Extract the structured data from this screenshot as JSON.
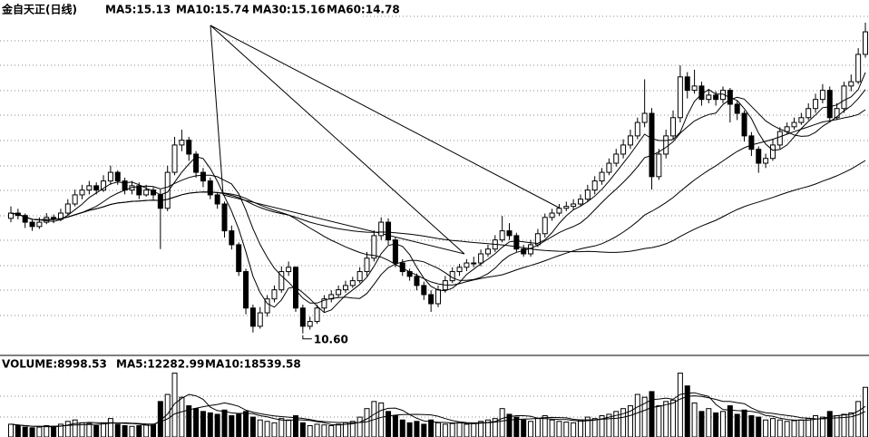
{
  "chart_data": {
    "type": "candlestick",
    "title": "金自天正(日线)",
    "indicators": [
      "MA5:15.13",
      "MA10:15.74",
      "MA30:15.16",
      "MA60:14.78"
    ],
    "annotation": "10.60",
    "ylim": [
      10.18,
      17.27
    ],
    "candles": [
      [
        13.0,
        13.25,
        12.92,
        13.11
      ],
      [
        13.11,
        13.2,
        12.98,
        13.06
      ],
      [
        13.06,
        13.1,
        12.8,
        12.92
      ],
      [
        12.92,
        12.98,
        12.74,
        12.83
      ],
      [
        12.83,
        13.02,
        12.78,
        12.92
      ],
      [
        12.92,
        13.11,
        12.88,
        13.02
      ],
      [
        13.02,
        13.08,
        12.9,
        12.98
      ],
      [
        12.98,
        13.2,
        12.94,
        13.11
      ],
      [
        13.11,
        13.4,
        13.05,
        13.3
      ],
      [
        13.3,
        13.6,
        13.25,
        13.49
      ],
      [
        13.49,
        13.7,
        13.4,
        13.59
      ],
      [
        13.59,
        13.78,
        13.5,
        13.68
      ],
      [
        13.68,
        13.75,
        13.5,
        13.59
      ],
      [
        13.59,
        13.9,
        13.55,
        13.78
      ],
      [
        13.78,
        14.1,
        13.7,
        13.96
      ],
      [
        13.96,
        14.0,
        13.7,
        13.78
      ],
      [
        13.78,
        13.85,
        13.5,
        13.59
      ],
      [
        13.59,
        13.78,
        13.5,
        13.68
      ],
      [
        13.68,
        13.75,
        13.4,
        13.49
      ],
      [
        13.49,
        13.7,
        13.45,
        13.59
      ],
      [
        13.59,
        13.65,
        13.4,
        13.49
      ],
      [
        13.49,
        13.6,
        12.36,
        13.21
      ],
      [
        13.21,
        14.1,
        13.15,
        13.96
      ],
      [
        13.96,
        14.7,
        13.9,
        14.53
      ],
      [
        14.53,
        14.85,
        14.4,
        14.63
      ],
      [
        14.63,
        14.7,
        14.2,
        14.34
      ],
      [
        14.34,
        14.4,
        13.85,
        13.96
      ],
      [
        13.96,
        14.05,
        13.65,
        13.78
      ],
      [
        13.78,
        13.85,
        13.4,
        13.49
      ],
      [
        13.49,
        13.55,
        13.2,
        13.3
      ],
      [
        13.3,
        13.35,
        12.6,
        12.74
      ],
      [
        12.74,
        12.85,
        12.35,
        12.45
      ],
      [
        12.45,
        12.5,
        11.8,
        11.89
      ],
      [
        11.89,
        11.95,
        11.0,
        11.13
      ],
      [
        11.13,
        11.2,
        10.62,
        10.75
      ],
      [
        10.75,
        11.15,
        10.7,
        11.03
      ],
      [
        11.03,
        11.4,
        10.95,
        11.32
      ],
      [
        11.32,
        11.6,
        11.25,
        11.51
      ],
      [
        11.51,
        12.0,
        11.45,
        11.89
      ],
      [
        11.89,
        12.1,
        11.8,
        11.98
      ],
      [
        11.98,
        12.0,
        11.05,
        11.13
      ],
      [
        11.13,
        11.2,
        10.6,
        10.75
      ],
      [
        10.75,
        10.95,
        10.68,
        10.85
      ],
      [
        10.85,
        11.2,
        10.8,
        11.13
      ],
      [
        11.13,
        11.4,
        11.05,
        11.32
      ],
      [
        11.32,
        11.5,
        11.25,
        11.41
      ],
      [
        11.41,
        11.6,
        11.35,
        11.51
      ],
      [
        11.51,
        11.7,
        11.45,
        11.6
      ],
      [
        11.6,
        11.78,
        11.55,
        11.7
      ],
      [
        11.7,
        11.98,
        11.65,
        11.89
      ],
      [
        11.89,
        12.3,
        11.8,
        12.17
      ],
      [
        12.17,
        12.75,
        12.1,
        12.64
      ],
      [
        12.64,
        13.02,
        12.55,
        12.92
      ],
      [
        12.92,
        13.0,
        12.45,
        12.55
      ],
      [
        12.55,
        12.6,
        11.98,
        12.07
      ],
      [
        12.07,
        12.15,
        11.8,
        11.89
      ],
      [
        11.89,
        11.95,
        11.7,
        11.79
      ],
      [
        11.79,
        11.85,
        11.5,
        11.6
      ],
      [
        11.6,
        11.68,
        11.3,
        11.41
      ],
      [
        11.41,
        11.5,
        11.05,
        11.22
      ],
      [
        11.22,
        11.6,
        11.15,
        11.51
      ],
      [
        11.51,
        11.8,
        11.45,
        11.7
      ],
      [
        11.7,
        11.98,
        11.65,
        11.89
      ],
      [
        11.89,
        12.05,
        11.8,
        11.98
      ],
      [
        11.98,
        12.15,
        11.9,
        12.07
      ],
      [
        12.07,
        12.2,
        11.98,
        12.07
      ],
      [
        12.07,
        12.35,
        12.0,
        12.26
      ],
      [
        12.26,
        12.45,
        12.2,
        12.36
      ],
      [
        12.36,
        12.65,
        12.3,
        12.55
      ],
      [
        12.55,
        13.05,
        12.5,
        12.74
      ],
      [
        12.74,
        12.9,
        12.55,
        12.64
      ],
      [
        12.64,
        12.7,
        12.3,
        12.36
      ],
      [
        12.36,
        12.45,
        12.2,
        12.26
      ],
      [
        12.26,
        12.55,
        12.2,
        12.45
      ],
      [
        12.45,
        12.78,
        12.4,
        12.68
      ],
      [
        12.68,
        13.1,
        12.6,
        13.02
      ],
      [
        13.02,
        13.2,
        12.95,
        13.11
      ],
      [
        13.11,
        13.3,
        13.05,
        13.21
      ],
      [
        13.21,
        13.35,
        13.15,
        13.25
      ],
      [
        13.25,
        13.4,
        13.18,
        13.3
      ],
      [
        13.3,
        13.5,
        13.25,
        13.4
      ],
      [
        13.4,
        13.7,
        13.35,
        13.59
      ],
      [
        13.59,
        13.88,
        13.5,
        13.78
      ],
      [
        13.78,
        14.05,
        13.7,
        13.96
      ],
      [
        13.96,
        14.25,
        13.9,
        14.15
      ],
      [
        14.15,
        14.45,
        14.08,
        14.34
      ],
      [
        14.34,
        14.65,
        14.25,
        14.53
      ],
      [
        14.53,
        14.85,
        14.45,
        14.72
      ],
      [
        14.72,
        15.1,
        14.65,
        15.0
      ],
      [
        15.0,
        15.9,
        14.9,
        15.19
      ],
      [
        15.19,
        15.3,
        13.6,
        13.87
      ],
      [
        13.87,
        14.45,
        13.8,
        14.34
      ],
      [
        14.34,
        14.85,
        14.25,
        14.72
      ],
      [
        14.72,
        15.25,
        14.65,
        15.1
      ],
      [
        15.1,
        16.19,
        15.0,
        15.95
      ],
      [
        15.95,
        16.05,
        15.5,
        15.67
      ],
      [
        15.67,
        16.1,
        15.6,
        15.76
      ],
      [
        15.76,
        15.85,
        15.35,
        15.48
      ],
      [
        15.48,
        15.7,
        15.4,
        15.57
      ],
      [
        15.57,
        15.65,
        15.35,
        15.48
      ],
      [
        15.48,
        15.75,
        15.4,
        15.67
      ],
      [
        15.67,
        15.72,
        15.0,
        15.38
      ],
      [
        15.38,
        15.45,
        15.05,
        15.19
      ],
      [
        15.19,
        15.25,
        14.6,
        14.72
      ],
      [
        14.72,
        14.8,
        14.3,
        14.44
      ],
      [
        14.44,
        14.5,
        13.95,
        14.15
      ],
      [
        14.15,
        14.35,
        14.05,
        14.25
      ],
      [
        14.25,
        14.65,
        14.2,
        14.53
      ],
      [
        14.53,
        14.9,
        14.45,
        14.81
      ],
      [
        14.81,
        15.0,
        14.75,
        14.91
      ],
      [
        14.91,
        15.1,
        14.85,
        15.0
      ],
      [
        15.0,
        15.2,
        14.95,
        15.1
      ],
      [
        15.1,
        15.4,
        15.05,
        15.29
      ],
      [
        15.29,
        15.6,
        15.2,
        15.48
      ],
      [
        15.48,
        15.8,
        15.4,
        15.67
      ],
      [
        15.67,
        15.75,
        15.0,
        15.1
      ],
      [
        15.1,
        15.4,
        15.05,
        15.29
      ],
      [
        15.29,
        15.85,
        15.2,
        15.76
      ],
      [
        15.76,
        16.0,
        15.65,
        15.85
      ],
      [
        15.85,
        16.55,
        15.8,
        16.42
      ],
      [
        16.42,
        17.08,
        16.35,
        16.89
      ]
    ],
    "volume_title": "VOLUME:8998.53",
    "volume_indicators": [
      "MA5:12282.99",
      "MA10:18539.58"
    ],
    "volume_ylim": [
      0,
      46000
    ],
    "volume": [
      9000,
      8000,
      7000,
      6500,
      7000,
      8000,
      7500,
      9000,
      11000,
      12000,
      10000,
      9500,
      8000,
      10000,
      13000,
      9000,
      8000,
      7500,
      8000,
      9000,
      8500,
      25000,
      30000,
      45000,
      28000,
      22000,
      20000,
      18000,
      17000,
      16000,
      19000,
      15000,
      16000,
      18000,
      14000,
      12000,
      11000,
      10000,
      13000,
      12000,
      15000,
      10000,
      8000,
      9000,
      8500,
      8000,
      9000,
      10000,
      11000,
      14000,
      20000,
      25000,
      24000,
      18000,
      15000,
      12000,
      10000,
      11000,
      9000,
      12000,
      10000,
      9000,
      9500,
      10000,
      9000,
      9500,
      11000,
      12000,
      13000,
      20000,
      16000,
      14000,
      12000,
      11000,
      13000,
      15000,
      12000,
      11000,
      10500,
      10000,
      12000,
      14000,
      13000,
      15000,
      16000,
      18000,
      20000,
      22000,
      30000,
      28000,
      32000,
      22000,
      25000,
      26000,
      45000,
      36000,
      24000,
      18000,
      20000,
      17000,
      18000,
      22000,
      16000,
      19000,
      15000,
      14000,
      12000,
      13000,
      12000,
      11000,
      11500,
      12000,
      13000,
      15000,
      14000,
      18000,
      15000,
      16000,
      17000,
      25000,
      35000
    ]
  }
}
